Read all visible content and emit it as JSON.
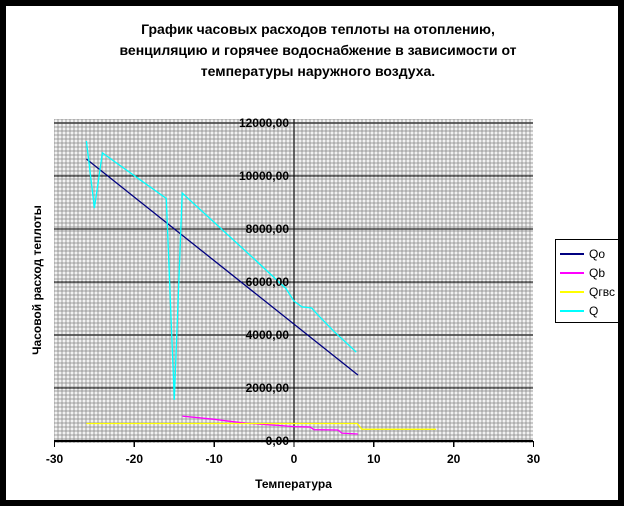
{
  "window": {
    "background": "#ffffff",
    "frame_color": "#000000"
  },
  "title": {
    "line1": "График часовых расходов теплоты на отоплению,",
    "line2": "венциляцию и горячее водоснабжение в зависимости от",
    "line3": "температуры наружного воздуха."
  },
  "chart_data": {
    "type": "line",
    "xlabel": "Температура",
    "ylabel": "Часовой расход теплоты",
    "xlim": [
      -30,
      30
    ],
    "ylim": [
      0,
      12000
    ],
    "x_tick_values": [
      -30,
      -20,
      -10,
      0,
      10,
      20,
      30
    ],
    "x_tick_labels": [
      "-30",
      "-20",
      "-10",
      "0",
      "10",
      "20",
      "30"
    ],
    "y_tick_values": [
      0,
      2000,
      4000,
      6000,
      8000,
      10000,
      12000
    ],
    "y_tick_labels": [
      "0,00",
      "2000,00",
      "4000,00",
      "6000,00",
      "8000,00",
      "10000,00",
      "12000,00"
    ],
    "grid": "horizontal major gridlines, black, on gray plot background",
    "plot_background": "#c9c9c9",
    "legend_position": "right",
    "series": [
      {
        "name": "Qo",
        "color": "#000080",
        "points": [
          [
            -26,
            10640
          ],
          [
            8,
            2490
          ]
        ]
      },
      {
        "name": "Qb",
        "color": "#ff00ff",
        "points": [
          [
            -14,
            940
          ],
          [
            -12,
            880
          ],
          [
            -10,
            820
          ],
          [
            -8,
            745
          ],
          [
            -6,
            670
          ],
          [
            -4,
            630
          ],
          [
            -2,
            590
          ],
          [
            0,
            545
          ],
          [
            2,
            530
          ],
          [
            2.5,
            425
          ],
          [
            5.5,
            415
          ],
          [
            6,
            300
          ],
          [
            8,
            265
          ]
        ]
      },
      {
        "name": "Qгвс",
        "color": "#ffff00",
        "points": [
          [
            -26,
            660
          ],
          [
            7.9,
            660
          ],
          [
            8.5,
            440
          ],
          [
            17.8,
            440
          ]
        ]
      },
      {
        "name": "Q",
        "color": "#00ffff",
        "points": [
          [
            -26,
            11320
          ],
          [
            -25,
            8790
          ],
          [
            -24,
            10870
          ],
          [
            -20,
            10010
          ],
          [
            -16,
            9150
          ],
          [
            -15,
            1560
          ],
          [
            -14,
            9360
          ],
          [
            -10,
            8250
          ],
          [
            -5,
            6870
          ],
          [
            -1,
            5750
          ],
          [
            0,
            5280
          ],
          [
            1,
            5060
          ],
          [
            2.2,
            5020
          ],
          [
            3,
            4760
          ],
          [
            5,
            4140
          ],
          [
            7.8,
            3350
          ]
        ]
      }
    ]
  }
}
